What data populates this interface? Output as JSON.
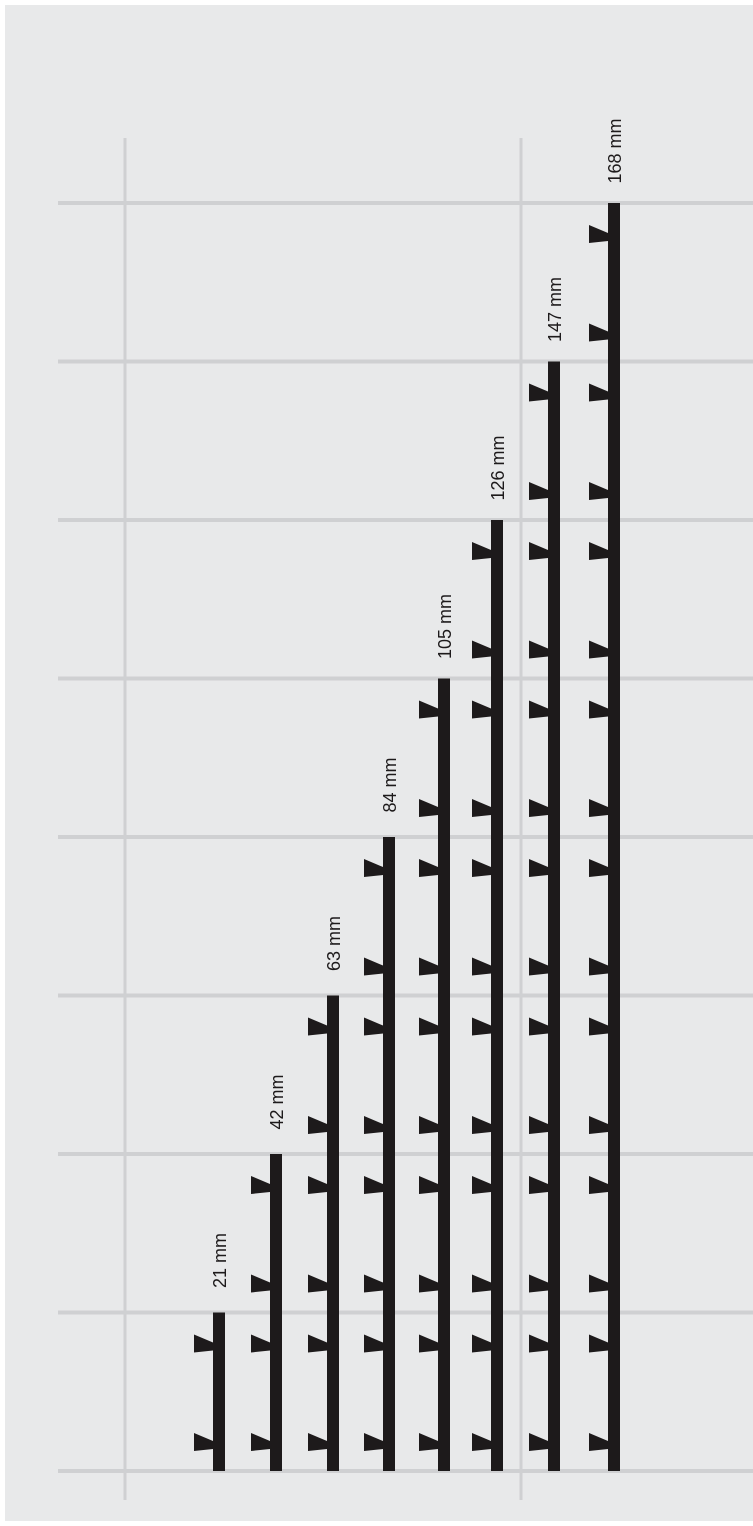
{
  "colors": {
    "background": "#e8e9ea",
    "grid": "#cfd0d2",
    "rail": "#1d1a1b"
  },
  "rails": [
    {
      "label": "21 mm",
      "modules": 1
    },
    {
      "label": "42 mm",
      "modules": 2
    },
    {
      "label": "63 mm",
      "modules": 3
    },
    {
      "label": "84 mm",
      "modules": 4
    },
    {
      "label": "105 mm",
      "modules": 5
    },
    {
      "label": "126 mm",
      "modules": 6
    },
    {
      "label": "147 mm",
      "modules": 7
    },
    {
      "label": "168 mm",
      "modules": 8
    }
  ]
}
